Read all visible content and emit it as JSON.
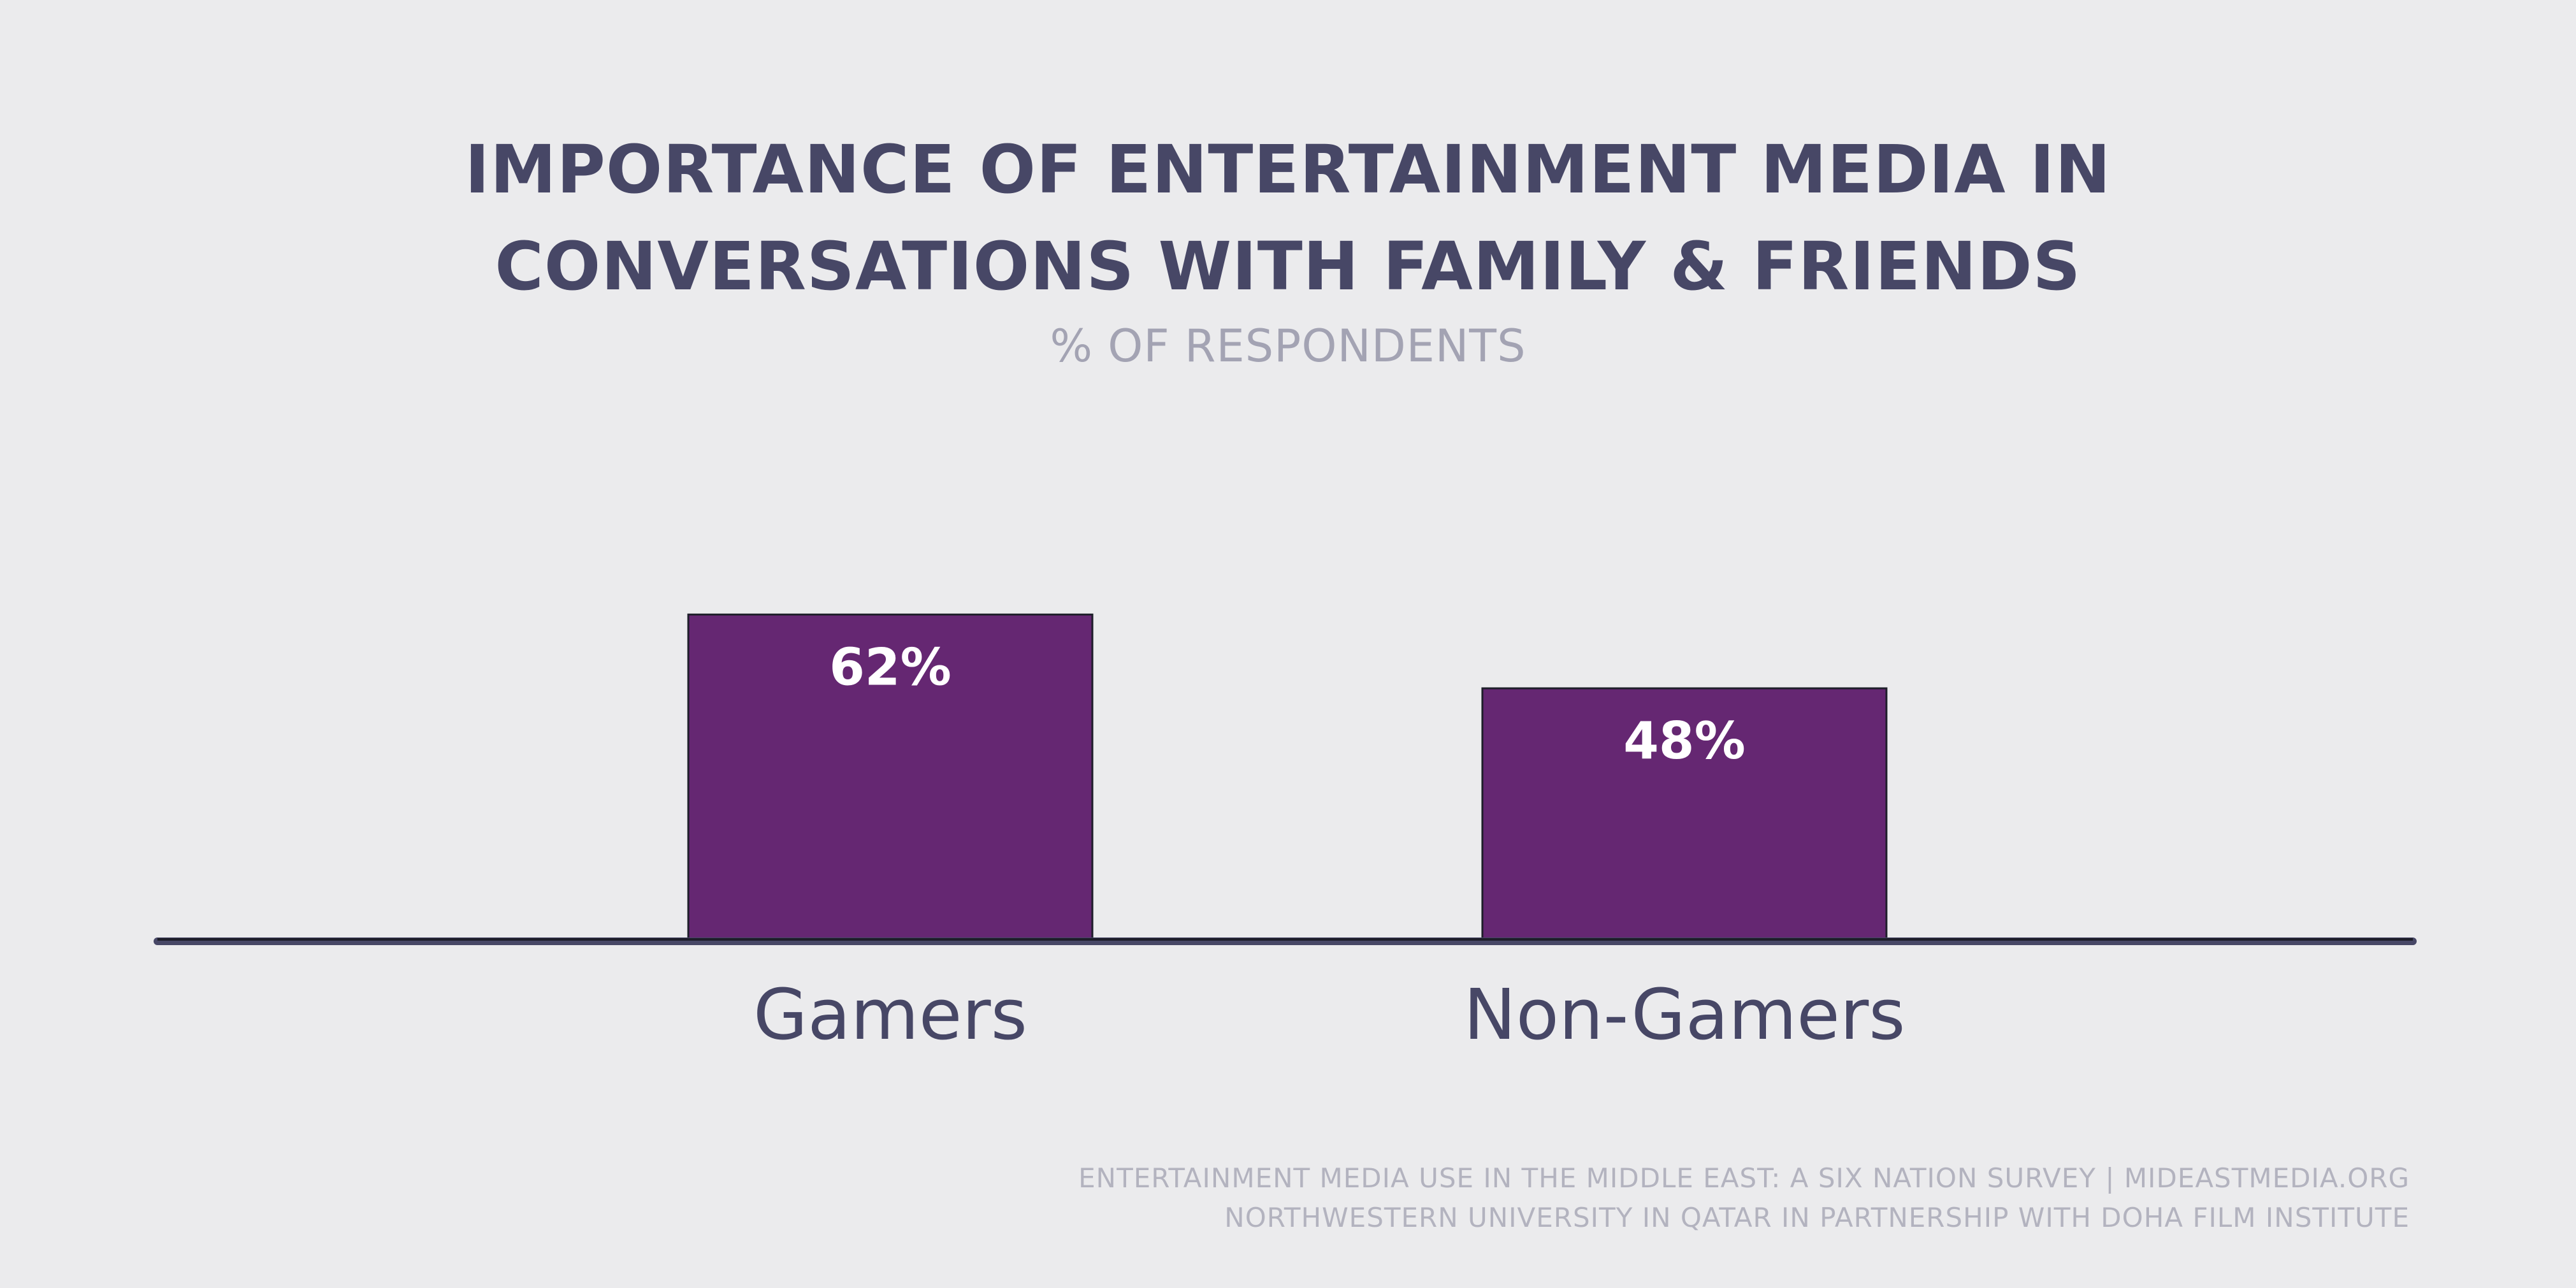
{
  "title_lines": [
    "IMPORTANCE OF ENTERTAINMENT MEDIA IN",
    "CONVERSATIONS WITH FAMILY & FRIENDS"
  ],
  "subtitle": "% OF RESPONDENTS",
  "source_lines": [
    "ENTERTAINMENT MEDIA USE IN THE MIDDLE EAST: A SIX NATION SURVEY | MIDEASTMEDIA.ORG",
    "NORTHWESTERN UNIVERSITY IN QATAR IN PARTNERSHIP WITH DOHA FILM INSTITUTE"
  ],
  "colors": {
    "bar": "#652772",
    "title": "#474766",
    "axis": "#474766"
  },
  "chart_data": {
    "type": "bar",
    "title": "IMPORTANCE OF ENTERTAINMENT MEDIA IN CONVERSATIONS WITH FAMILY & FRIENDS",
    "subtitle": "% OF RESPONDENTS",
    "categories": [
      "Gamers",
      "Non-Gamers"
    ],
    "values": [
      62,
      48
    ],
    "value_labels": [
      "62%",
      "48%"
    ],
    "xlabel": "",
    "ylabel": "",
    "ylim": [
      0,
      100
    ],
    "grid": false,
    "legend": "none"
  }
}
